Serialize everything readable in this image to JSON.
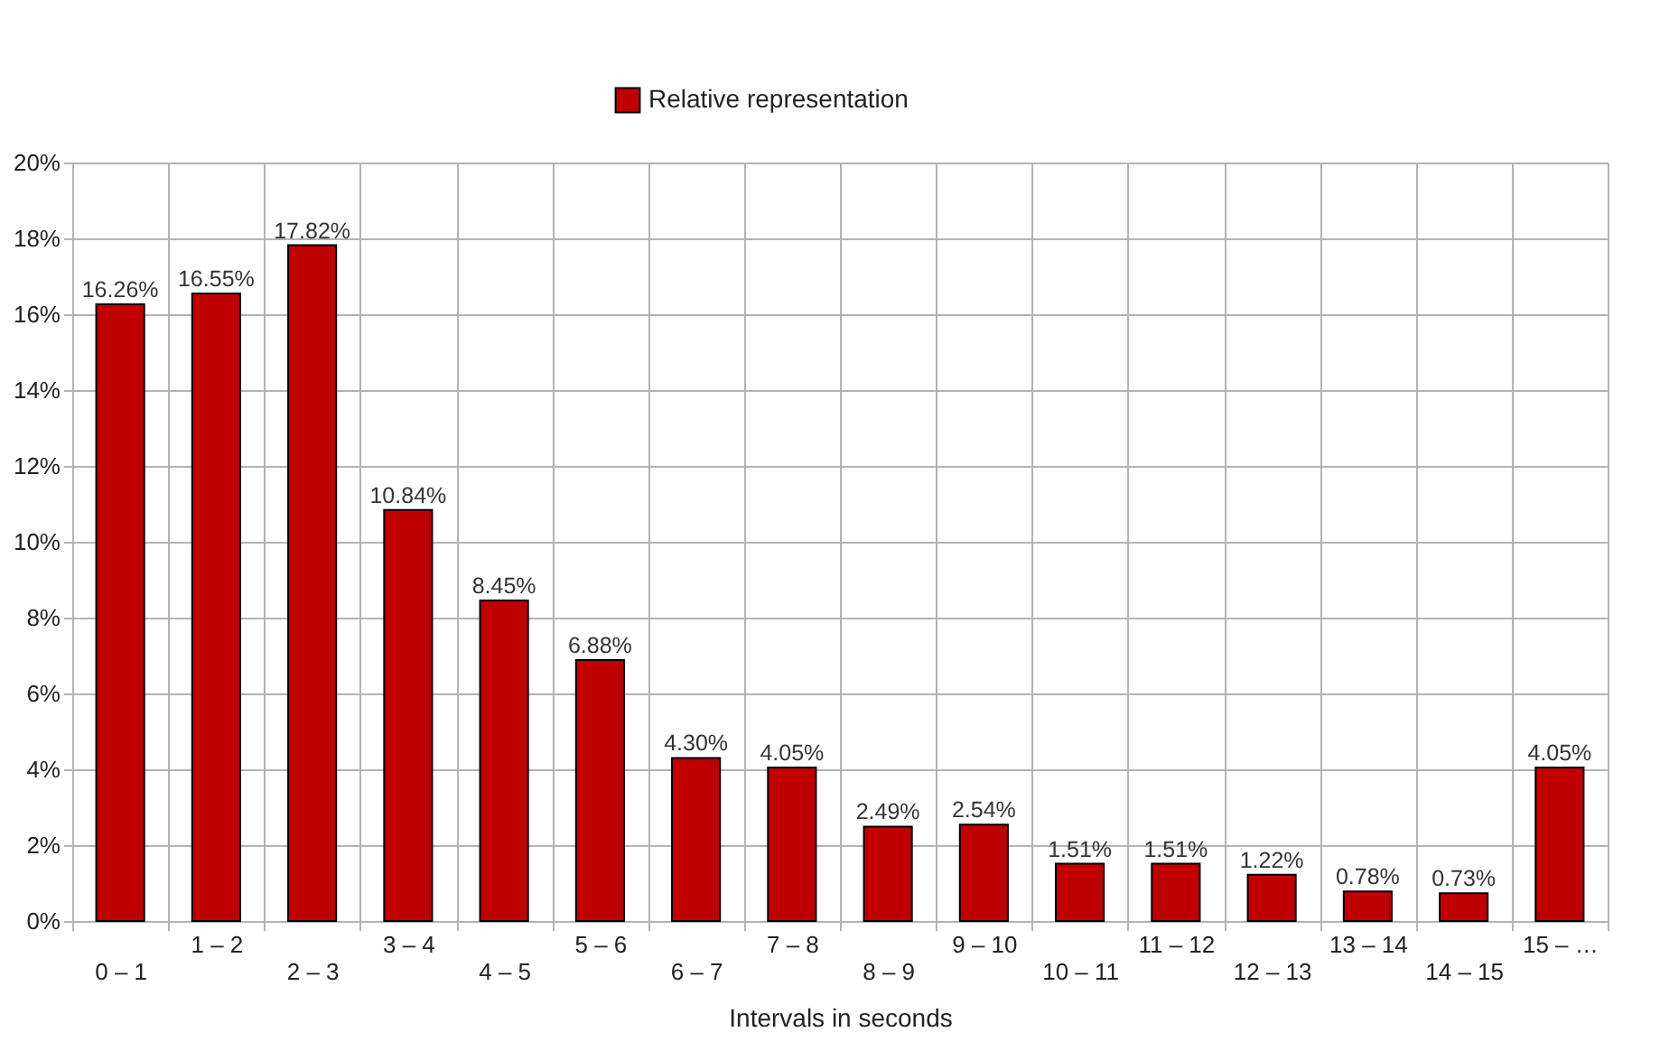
{
  "chart_data": {
    "type": "bar",
    "xlabel": "Intervals in seconds",
    "categories": [
      "0 – 1",
      "1 – 2",
      "2 – 3",
      "3 – 4",
      "4 – 5",
      "5 – 6",
      "6 – 7",
      "7 – 8",
      "8 – 9",
      "9 – 10",
      "10 – 11",
      "11 – 12",
      "12 – 13",
      "13 – 14",
      "14 – 15",
      "15 – …"
    ],
    "series": [
      {
        "name": "Relative representation",
        "color": "#c00000",
        "values": [
          16.26,
          16.55,
          17.82,
          10.84,
          8.45,
          6.88,
          4.3,
          4.05,
          2.49,
          2.54,
          1.51,
          1.51,
          1.22,
          0.78,
          0.73,
          4.05
        ],
        "value_labels": [
          "16.26%",
          "16.55%",
          "17.82%",
          "10.84%",
          "8.45%",
          "6.88%",
          "4.30%",
          "4.05%",
          "2.49%",
          "2.54%",
          "1.51%",
          "1.51%",
          "1.22%",
          "0.78%",
          "0.73%",
          "4.05%"
        ]
      }
    ],
    "ylim": [
      0,
      20
    ],
    "yticks": [
      {
        "value": 0,
        "label": "0%"
      },
      {
        "value": 2,
        "label": "2%"
      },
      {
        "value": 4,
        "label": "4%"
      },
      {
        "value": 6,
        "label": "6%"
      },
      {
        "value": 8,
        "label": "8%"
      },
      {
        "value": 10,
        "label": "10%"
      },
      {
        "value": 12,
        "label": "12%"
      },
      {
        "value": 14,
        "label": "14%"
      },
      {
        "value": 16,
        "label": "16%"
      },
      {
        "value": 18,
        "label": "18%"
      },
      {
        "value": 20,
        "label": "20%"
      }
    ],
    "grid": true,
    "legend": "top"
  }
}
